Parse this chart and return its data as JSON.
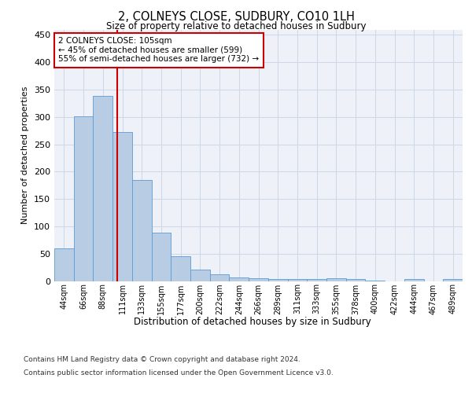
{
  "title": "2, COLNEYS CLOSE, SUDBURY, CO10 1LH",
  "subtitle": "Size of property relative to detached houses in Sudbury",
  "xlabel": "Distribution of detached houses by size in Sudbury",
  "ylabel": "Number of detached properties",
  "categories": [
    "44sqm",
    "66sqm",
    "88sqm",
    "111sqm",
    "133sqm",
    "155sqm",
    "177sqm",
    "200sqm",
    "222sqm",
    "244sqm",
    "266sqm",
    "289sqm",
    "311sqm",
    "333sqm",
    "355sqm",
    "378sqm",
    "400sqm",
    "422sqm",
    "444sqm",
    "467sqm",
    "489sqm"
  ],
  "values": [
    60,
    301,
    338,
    272,
    185,
    88,
    45,
    21,
    12,
    7,
    5,
    3,
    4,
    4,
    5,
    3,
    1,
    0,
    4,
    0,
    4
  ],
  "bar_color": "#b8cce4",
  "bar_edgecolor": "#5b9bd5",
  "annotation_text": "2 COLNEYS CLOSE: 105sqm\n← 45% of detached houses are smaller (599)\n55% of semi-detached houses are larger (732) →",
  "annotation_box_color": "#ffffff",
  "annotation_box_edgecolor": "#cc0000",
  "redline_color": "#cc0000",
  "grid_color": "#d0d8e8",
  "background_color": "#eef2f8",
  "ylim": [
    0,
    460
  ],
  "yticks": [
    0,
    50,
    100,
    150,
    200,
    250,
    300,
    350,
    400,
    450
  ],
  "footer_line1": "Contains HM Land Registry data © Crown copyright and database right 2024.",
  "footer_line2": "Contains public sector information licensed under the Open Government Licence v3.0."
}
